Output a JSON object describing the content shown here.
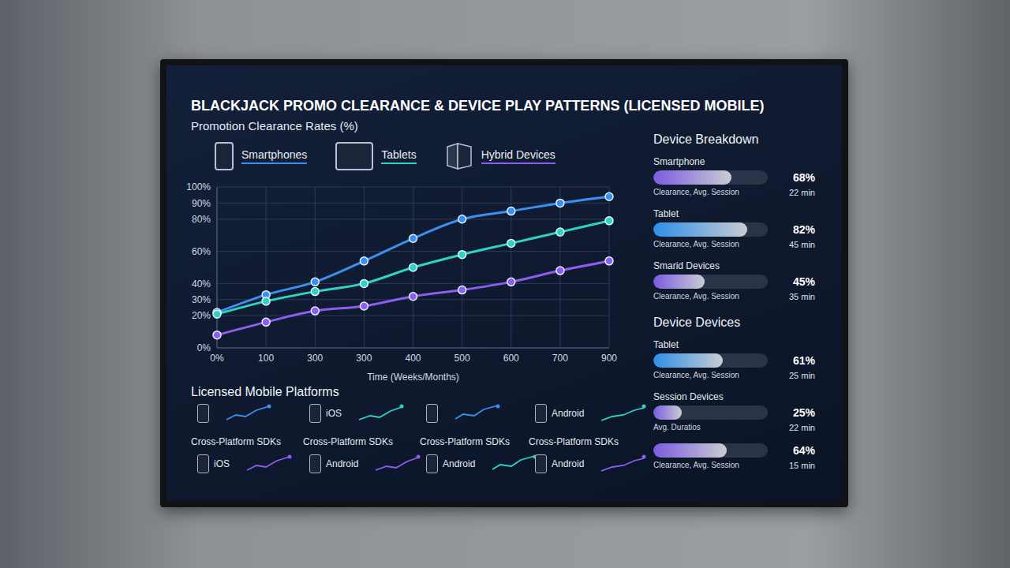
{
  "title": "BLACKJACK PROMO CLEARANCE & DEVICE PLAY PATTERNS (LICENSED MOBILE)",
  "chart_data": {
    "type": "line",
    "title": "Promotion Clearance Rates (%)",
    "x_label": "Time (Weeks/Months)",
    "categories": [
      "0%",
      "100",
      "300",
      "300",
      "400",
      "500",
      "600",
      "700",
      "900"
    ],
    "series": [
      {
        "name": "Smartphones",
        "color": "#3b8ff0",
        "marker": "circle",
        "values": [
          22,
          33,
          41,
          54,
          68,
          80,
          85,
          90,
          94
        ]
      },
      {
        "name": "Tablets",
        "color": "#2fd3c4",
        "marker": "circle",
        "values": [
          21,
          29,
          35,
          40,
          50,
          58,
          65,
          72,
          79
        ]
      },
      {
        "name": "Hybrid Devices",
        "color": "#8d5cf0",
        "marker": "circle",
        "values": [
          8,
          16,
          23,
          26,
          32,
          36,
          41,
          48,
          54
        ]
      }
    ],
    "ylim": [
      0,
      100
    ],
    "yticks": [
      {
        "value": 0,
        "label": "0%"
      },
      {
        "value": 20,
        "label": "20%"
      },
      {
        "value": 30,
        "label": "30%"
      },
      {
        "value": 40,
        "label": "40%"
      },
      {
        "value": 60,
        "label": "60%"
      },
      {
        "value": 80,
        "label": "80%"
      },
      {
        "value": 90,
        "label": "90%"
      },
      {
        "value": 100,
        "label": "100%"
      }
    ],
    "grid": true,
    "legend": "top"
  },
  "platforms": {
    "title": "Licensed Mobile Platforms",
    "rows": [
      [
        {
          "color": "#3b8ff0",
          "caption": "Cross-Platform SDKs"
        },
        {
          "label": "iOS",
          "color": "#2fd3c4",
          "caption": "Cross-Platform SDKs"
        },
        {
          "color": "#3b8ff0",
          "caption": "Cross-Platform SDKs"
        },
        {
          "label": "Android",
          "color": "#2fd3c4",
          "caption": "Cross-Platform SDKs"
        }
      ],
      [
        {
          "label": "iOS",
          "color": "#8d5cf0"
        },
        {
          "label": "Android",
          "color": "#8d5cf0"
        },
        {
          "label": "Android",
          "color": "#2fd3c4"
        },
        {
          "label": "Android",
          "color": "#8d5cf0"
        }
      ]
    ]
  },
  "panels": [
    {
      "title": "Device Breakdown",
      "items": [
        {
          "name": "Smartphone",
          "value": 68,
          "value_label": "68%",
          "sub_label": "Clearance, Avg. Session",
          "session": "22 min",
          "color": "#7a5ce0"
        },
        {
          "name": "Tablet",
          "value": 82,
          "value_label": "82%",
          "sub_label": "Clearance, Avg. Session",
          "session": "45 min",
          "color": "#2f8fe8"
        },
        {
          "name": "Smarid Devices",
          "value": 45,
          "value_label": "45%",
          "sub_label": "Clearance, Avg. Session",
          "session": "35 min",
          "color": "#7a5ce0"
        }
      ]
    },
    {
      "title": "Device Devices",
      "items": [
        {
          "name": "Tablet",
          "value": 61,
          "value_label": "61%",
          "sub_label": "Clearance, Avg. Session",
          "session": "25 min",
          "color": "#2f8fe8"
        },
        {
          "name": "Session Devices",
          "value": 25,
          "value_label": "25%",
          "sub_label": "Avg. Duratios",
          "session": "22 min",
          "color": "#7a5ce0"
        },
        {
          "value": 64,
          "value_label": "64%",
          "sub_label": "Clearance, Avg. Session",
          "session": "15 min",
          "color": "#7a5ce0"
        }
      ]
    }
  ]
}
